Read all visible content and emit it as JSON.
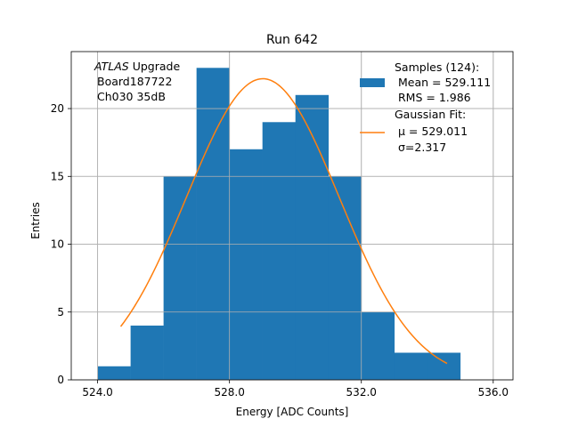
{
  "chart_data": {
    "type": "bar",
    "title": "Run 642",
    "xlabel": "Energy [ADC Counts]",
    "ylabel": "Entries",
    "xlim": [
      523.2,
      536.6
    ],
    "ylim": [
      0,
      24.2
    ],
    "xticks": [
      524.0,
      528.0,
      532.0,
      536.0
    ],
    "xtick_labels": [
      "524.0",
      "528.0",
      "532.0",
      "536.0"
    ],
    "yticks": [
      0,
      5,
      10,
      15,
      20
    ],
    "ytick_labels": [
      "0",
      "5",
      "10",
      "15",
      "20"
    ],
    "grid": true,
    "annotation": {
      "italic": "ATLAS",
      "line1_rest": " Upgrade",
      "line2": "Board187722",
      "line3": "Ch030 35dB"
    },
    "histogram": {
      "name": "Samples (124):",
      "color": "#1f77b4",
      "bin_edges": [
        524,
        525,
        526,
        527,
        528,
        529,
        530,
        531,
        532,
        533,
        534,
        535
      ],
      "counts": [
        1,
        4,
        15,
        23,
        17,
        19,
        21,
        15,
        5,
        2,
        2
      ],
      "legend_lines": [
        "Samples (124):",
        "Mean = 529.111",
        "RMS = 1.986"
      ]
    },
    "fit": {
      "name": "Gaussian Fit:",
      "color": "#ff7f0e",
      "mu": 529.011,
      "sigma": 2.317,
      "amplitude": 22.2,
      "x_range": [
        524.7,
        534.6
      ],
      "legend_lines": [
        "Gaussian Fit:",
        "μ = 529.011",
        "σ=2.317"
      ]
    },
    "legend_position": "top-right"
  }
}
